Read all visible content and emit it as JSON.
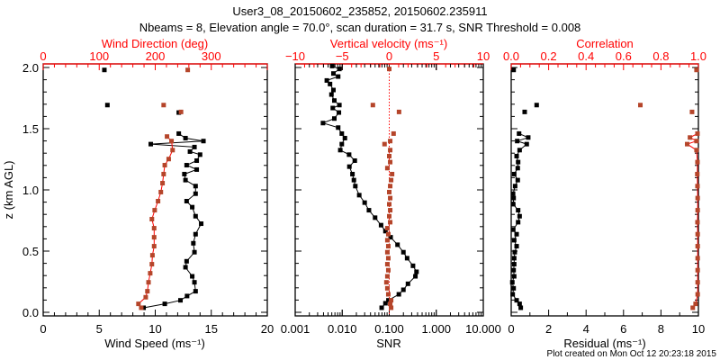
{
  "chart_data": {
    "type": "scatter",
    "title": "User3_08_20150602_235852, 20150602.235911",
    "subtitle": "Nbeams = 8, Elevation angle = 70.0°, scan duration = 31.7 s, SNR Threshold = 0.008",
    "footer": "Plot created on Mon Oct 12 20:23:18 2015",
    "ylabel": "z (km AGL)",
    "ylim": [
      0,
      2.0
    ],
    "yticks": [
      "0.0",
      "0.5",
      "1.0",
      "1.5",
      "2.0"
    ],
    "colors": {
      "primary": "#000000",
      "secondary": "#b5452a",
      "axis_secondary": "#ff0000"
    },
    "panels": [
      {
        "bottom": {
          "label": "Wind Speed (ms⁻¹)",
          "xlim": [
            0,
            20
          ],
          "ticks": [
            "0",
            "5",
            "10",
            "15",
            "20"
          ],
          "scale": "linear"
        },
        "top": {
          "label": "Wind Direction (deg)",
          "xlim": [
            0,
            400
          ],
          "ticks": [
            "0",
            "100",
            "200",
            "300"
          ],
          "scale": "linear"
        },
        "series": [
          {
            "name": "Wind speed",
            "axis": "bottom",
            "color": "#000000",
            "points": [
              [
                0.037,
                8.96
              ],
              [
                0.069,
                10.85
              ],
              [
                0.098,
                12.25
              ],
              [
                0.133,
                12.84
              ],
              [
                0.172,
                13.6
              ],
              [
                0.245,
                13.5
              ],
              [
                0.294,
                13.3
              ],
              [
                0.368,
                12.7
              ],
              [
                0.417,
                12.8
              ],
              [
                0.491,
                13.5
              ],
              [
                0.564,
                13.4
              ],
              [
                0.638,
                13.6
              ],
              [
                0.724,
                14.1
              ],
              [
                0.785,
                13.6
              ],
              [
                0.859,
                13.3
              ],
              [
                0.908,
                12.8
              ],
              [
                0.969,
                13.6
              ],
              [
                1.031,
                13.6
              ],
              [
                1.08,
                12.7
              ],
              [
                1.129,
                12.6
              ],
              [
                1.166,
                13.7
              ],
              [
                1.202,
                12.8
              ],
              [
                1.239,
                13.7
              ],
              [
                1.288,
                14.0
              ],
              [
                1.313,
                13.1
              ],
              [
                1.35,
                13.5
              ],
              [
                1.374,
                9.6
              ],
              [
                1.399,
                14.3
              ],
              [
                1.423,
                12.7
              ],
              [
                1.46,
                12.1
              ]
            ],
            "outliers": [
              [
                1.98,
                5.46
              ],
              [
                1.693,
                5.73
              ],
              [
                1.632,
                12.1
              ]
            ]
          },
          {
            "name": "Wind direction",
            "axis": "top",
            "color": "#b5452a",
            "points": [
              [
                0.037,
                175
              ],
              [
                0.069,
                170
              ],
              [
                0.123,
                183
              ],
              [
                0.172,
                186
              ],
              [
                0.245,
                188
              ],
              [
                0.319,
                191
              ],
              [
                0.393,
                194
              ],
              [
                0.466,
                195
              ],
              [
                0.54,
                198
              ],
              [
                0.613,
                198
              ],
              [
                0.687,
                198
              ],
              [
                0.761,
                194
              ],
              [
                0.834,
                199
              ],
              [
                0.908,
                205
              ],
              [
                0.982,
                210
              ],
              [
                1.055,
                213
              ],
              [
                1.129,
                215
              ],
              [
                1.202,
                217
              ],
              [
                1.252,
                224
              ],
              [
                1.325,
                231
              ],
              [
                1.399,
                229
              ],
              [
                1.436,
                221
              ]
            ],
            "outliers": [
              [
                1.98,
                258
              ],
              [
                1.693,
                215
              ],
              [
                1.637,
                246
              ]
            ]
          }
        ]
      },
      {
        "bottom": {
          "label": "SNR",
          "xlim": [
            0.001,
            10
          ],
          "ticks": [
            "0.001",
            "0.010",
            "0.100",
            "1.000",
            "10.000"
          ],
          "scale": "log"
        },
        "top": {
          "label": "Vertical velocity (ms⁻¹)",
          "xlim": [
            -10,
            10
          ],
          "ticks": [
            "−10",
            "−5",
            "0",
            "5",
            "10"
          ],
          "scale": "linear"
        },
        "series": [
          {
            "name": "SNR",
            "axis": "bottom",
            "color": "#000000",
            "points": [
              [
                0.037,
                0.069
              ],
              [
                0.074,
                0.083
              ],
              [
                0.098,
                0.096
              ],
              [
                0.147,
                0.16
              ],
              [
                0.184,
                0.2
              ],
              [
                0.233,
                0.25
              ],
              [
                0.294,
                0.36
              ],
              [
                0.331,
                0.38
              ],
              [
                0.38,
                0.32
              ],
              [
                0.442,
                0.24
              ],
              [
                0.491,
                0.2
              ],
              [
                0.552,
                0.15
              ],
              [
                0.613,
                0.107
              ],
              [
                0.663,
                0.083
              ],
              [
                0.712,
                0.067
              ],
              [
                0.773,
                0.05
              ],
              [
                0.834,
                0.037
              ],
              [
                0.896,
                0.03
              ],
              [
                0.957,
                0.023
              ],
              [
                1.031,
                0.019
              ],
              [
                1.08,
                0.0177
              ],
              [
                1.129,
                0.0165
              ],
              [
                1.19,
                0.0142
              ],
              [
                1.239,
                0.0185
              ],
              [
                1.288,
                0.014
              ],
              [
                1.325,
                0.0091
              ],
              [
                1.374,
                0.0098
              ],
              [
                1.423,
                0.0114
              ],
              [
                1.46,
                0.0098
              ],
              [
                1.509,
                0.0082
              ],
              [
                1.546,
                0.0039
              ],
              [
                1.583,
                0.0068
              ],
              [
                1.632,
                0.0085
              ],
              [
                1.669,
                0.0063
              ],
              [
                1.693,
                0.0087
              ],
              [
                1.73,
                0.0068
              ],
              [
                1.779,
                0.0059
              ],
              [
                1.816,
                0.0065
              ],
              [
                1.865,
                0.0055
              ],
              [
                1.894,
                0.0047
              ],
              [
                1.926,
                0.0082
              ],
              [
                1.951,
                0.0065
              ],
              [
                1.988,
                0.0087
              ],
              [
                2.012,
                0.0061
              ]
            ],
            "outliers": []
          },
          {
            "name": "Vertical velocity",
            "axis": "top",
            "color": "#b5452a",
            "markers_only": true,
            "points": [
              [
                0.037,
                0.2
              ],
              [
                0.069,
                0.1
              ],
              [
                0.098,
                0.2
              ],
              [
                0.147,
                -0.1
              ],
              [
                0.196,
                -0.2
              ],
              [
                0.245,
                -0.3
              ],
              [
                0.294,
                -0.2
              ],
              [
                0.344,
                -0.1
              ],
              [
                0.393,
                -0.2
              ],
              [
                0.442,
                -0.1
              ],
              [
                0.491,
                -0.2
              ],
              [
                0.54,
                -0.1
              ],
              [
                0.589,
                -0.2
              ],
              [
                0.638,
                -0.1
              ],
              [
                0.687,
                -0.2
              ],
              [
                0.736,
                0.1
              ],
              [
                0.785,
                0.0
              ],
              [
                0.834,
                0.1
              ],
              [
                0.883,
                0.0
              ],
              [
                0.933,
                0.1
              ],
              [
                0.982,
                0.0
              ],
              [
                1.031,
                0.1
              ],
              [
                1.08,
                0.2
              ],
              [
                1.129,
                0.3
              ],
              [
                1.178,
                -0.2
              ],
              [
                1.227,
                0.1
              ],
              [
                1.276,
                0.0
              ],
              [
                1.325,
                0.1
              ],
              [
                1.374,
                -0.5
              ],
              [
                1.399,
                0.1
              ],
              [
                1.46,
                0.46
              ]
            ],
            "outliers": [
              [
                1.988,
                0.0
              ],
              [
                1.693,
                -1.74
              ],
              [
                1.637,
                1.04
              ]
            ]
          }
        ],
        "reference_line": {
          "axis": "top",
          "value": 0
        }
      },
      {
        "bottom": {
          "label": "Residual (ms⁻¹)",
          "xlim": [
            0,
            10
          ],
          "ticks": [
            "0",
            "2",
            "4",
            "6",
            "8",
            "10"
          ],
          "scale": "linear"
        },
        "top": {
          "label": "Correlation",
          "xlim": [
            0,
            1.0
          ],
          "ticks": [
            "0.0",
            "0.2",
            "0.4",
            "0.6",
            "0.8",
            "1.0"
          ],
          "scale": "linear"
        },
        "series": [
          {
            "name": "Residual",
            "axis": "bottom",
            "color": "#000000",
            "points": [
              [
                0.037,
                0.51
              ],
              [
                0.069,
                0.45
              ],
              [
                0.098,
                0.29
              ],
              [
                0.147,
                0.08
              ],
              [
                0.196,
                0.13
              ],
              [
                0.245,
                0.06
              ],
              [
                0.294,
                0.16
              ],
              [
                0.344,
                0.13
              ],
              [
                0.393,
                0.16
              ],
              [
                0.442,
                0.16
              ],
              [
                0.491,
                0.19
              ],
              [
                0.54,
                0.29
              ],
              [
                0.589,
                0.16
              ],
              [
                0.638,
                0.29
              ],
              [
                0.675,
                0.11
              ],
              [
                0.736,
                0.37
              ],
              [
                0.785,
                0.45
              ],
              [
                0.834,
                0.37
              ],
              [
                0.883,
                0.11
              ],
              [
                0.933,
                0.13
              ],
              [
                0.969,
                0.1
              ],
              [
                1.031,
                0.21
              ],
              [
                1.08,
                0.35
              ],
              [
                1.129,
                0.16
              ],
              [
                1.178,
                0.35
              ],
              [
                1.227,
                0.37
              ],
              [
                1.276,
                0.29
              ],
              [
                1.325,
                0.45
              ],
              [
                1.374,
                0.83
              ],
              [
                1.399,
                0.32
              ],
              [
                1.428,
                0.91
              ],
              [
                1.46,
                0.42
              ]
            ],
            "outliers": [
              [
                1.98,
                0.13
              ],
              [
                1.693,
                1.36
              ],
              [
                1.637,
                0.72
              ]
            ]
          },
          {
            "name": "Correlation",
            "axis": "top",
            "color": "#b5452a",
            "points": [
              [
                0.037,
                0.97
              ],
              [
                0.069,
                0.985
              ],
              [
                0.147,
                0.996
              ],
              [
                0.245,
                0.996
              ],
              [
                0.344,
                0.996
              ],
              [
                0.442,
                0.996
              ],
              [
                0.54,
                0.996
              ],
              [
                0.638,
                0.996
              ],
              [
                0.736,
                0.995
              ],
              [
                0.834,
                0.996
              ],
              [
                0.933,
                0.996
              ],
              [
                1.031,
                0.995
              ],
              [
                1.129,
                0.994
              ],
              [
                1.227,
                0.995
              ],
              [
                1.325,
                0.99
              ],
              [
                1.374,
                0.94
              ],
              [
                1.399,
                0.99
              ],
              [
                1.428,
                0.955
              ],
              [
                1.46,
                0.995
              ]
            ],
            "outliers": [
              [
                1.98,
                0.99
              ],
              [
                1.693,
                0.69
              ],
              [
                1.637,
                0.966
              ]
            ]
          }
        ]
      }
    ]
  }
}
